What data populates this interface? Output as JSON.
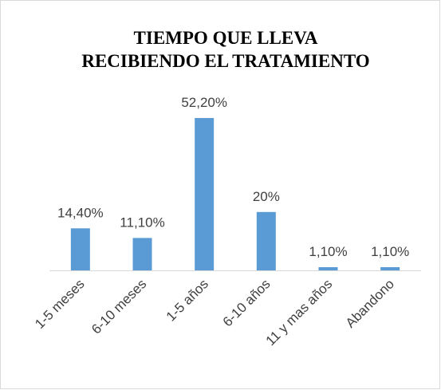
{
  "chart_data": {
    "type": "bar",
    "title": [
      "TIEMPO QUE LLEVA",
      "RECIBIENDO EL TRATAMIENTO"
    ],
    "categories": [
      "1-5 meses",
      "6-10 meses",
      "1-5 años",
      "6-10 años",
      "11 y mas años",
      "Abandono"
    ],
    "values": [
      14.4,
      11.1,
      52.2,
      20,
      1.1,
      1.1
    ],
    "value_labels": [
      "14,40%",
      "11,10%",
      "52,20%",
      "20%",
      "1,10%",
      "1,10%"
    ],
    "color": "#5b9bd5"
  }
}
